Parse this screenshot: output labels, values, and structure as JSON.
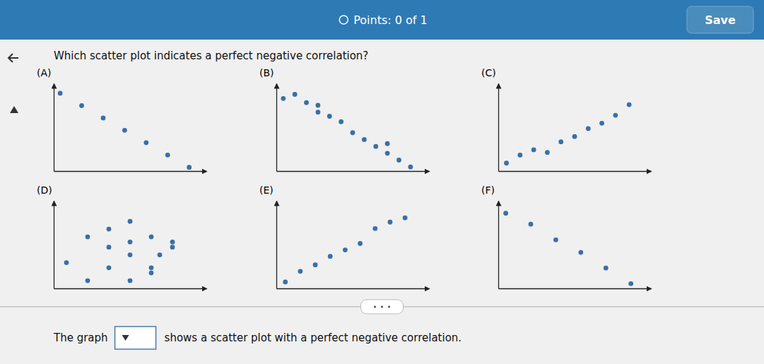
{
  "page": {
    "header_text": "Points: 0 of 1",
    "save_label": "Save",
    "question": "Which scatter plot indicates a perfect negative correlation?",
    "answer_text": "The graph",
    "answer_suffix": "shows a scatter plot with a perfect negative correlation."
  },
  "chart_data": [
    {
      "type": "scatter",
      "title": "(A)",
      "color": "#3a6fa8",
      "tick_labels": false,
      "x": [
        1,
        2,
        3,
        4,
        5,
        6,
        7
      ],
      "values": [
        7.0,
        6.0,
        5.0,
        4.0,
        3.0,
        2.0,
        1.0
      ],
      "xlim": [
        0.7,
        7.8
      ],
      "ylim": [
        0.7,
        7.8
      ]
    },
    {
      "type": "scatter",
      "title": "(B)",
      "color": "#3a6fa8",
      "tick_labels": false,
      "x": [
        0.5,
        1.0,
        1.5,
        2.0,
        2.0,
        2.5,
        3.0,
        3.5,
        4.0,
        4.5,
        5.0,
        5.5,
        5.0,
        6.0
      ],
      "values": [
        6.5,
        6.8,
        6.2,
        6.0,
        5.5,
        5.2,
        4.8,
        4.0,
        3.5,
        3.0,
        2.5,
        2.0,
        3.2,
        1.5
      ],
      "xlim": [
        0.2,
        6.8
      ],
      "ylim": [
        1.2,
        7.6
      ]
    },
    {
      "type": "scatter",
      "title": "(C)",
      "color": "#3a6fa8",
      "tick_labels": false,
      "x": [
        1.0,
        1.5,
        2.0,
        2.5,
        3.0,
        3.5,
        4.0,
        4.5,
        5.0,
        5.5
      ],
      "values": [
        2.0,
        2.3,
        2.5,
        2.4,
        2.8,
        3.0,
        3.3,
        3.5,
        3.8,
        4.2
      ],
      "xlim": [
        0.7,
        6.3
      ],
      "ylim": [
        1.7,
        5.0
      ]
    },
    {
      "type": "scatter",
      "title": "(D)",
      "color": "#3a6fa8",
      "tick_labels": false,
      "x": [
        1.0,
        1.5,
        2.0,
        2.5,
        2.0,
        2.5,
        3.0,
        3.5,
        3.0,
        2.0,
        2.5,
        3.0,
        1.5,
        3.5,
        2.5,
        3.2
      ],
      "values": [
        3.2,
        4.2,
        3.8,
        4.0,
        3.0,
        3.5,
        4.2,
        3.8,
        3.0,
        4.5,
        4.8,
        2.8,
        2.5,
        4.0,
        2.5,
        3.5
      ],
      "xlim": [
        0.7,
        4.3
      ],
      "ylim": [
        2.2,
        5.6
      ]
    },
    {
      "type": "scatter",
      "title": "(E)",
      "color": "#3a6fa8",
      "tick_labels": false,
      "x": [
        1.5,
        2.0,
        2.5,
        3.0,
        3.5,
        4.0,
        4.5,
        5.0,
        5.5
      ],
      "values": [
        1.0,
        1.5,
        1.8,
        2.2,
        2.5,
        2.8,
        3.5,
        3.8,
        4.0
      ],
      "xlim": [
        1.2,
        6.3
      ],
      "ylim": [
        0.7,
        4.8
      ]
    },
    {
      "type": "scatter",
      "title": "(F)",
      "color": "#3a6fa8",
      "tick_labels": false,
      "x": [
        1.0,
        2.0,
        3.0,
        4.0,
        5.0,
        6.0
      ],
      "values": [
        5.5,
        4.8,
        3.8,
        3.0,
        2.0,
        1.0
      ],
      "xlim": [
        0.7,
        6.8
      ],
      "ylim": [
        0.7,
        6.3
      ]
    }
  ]
}
